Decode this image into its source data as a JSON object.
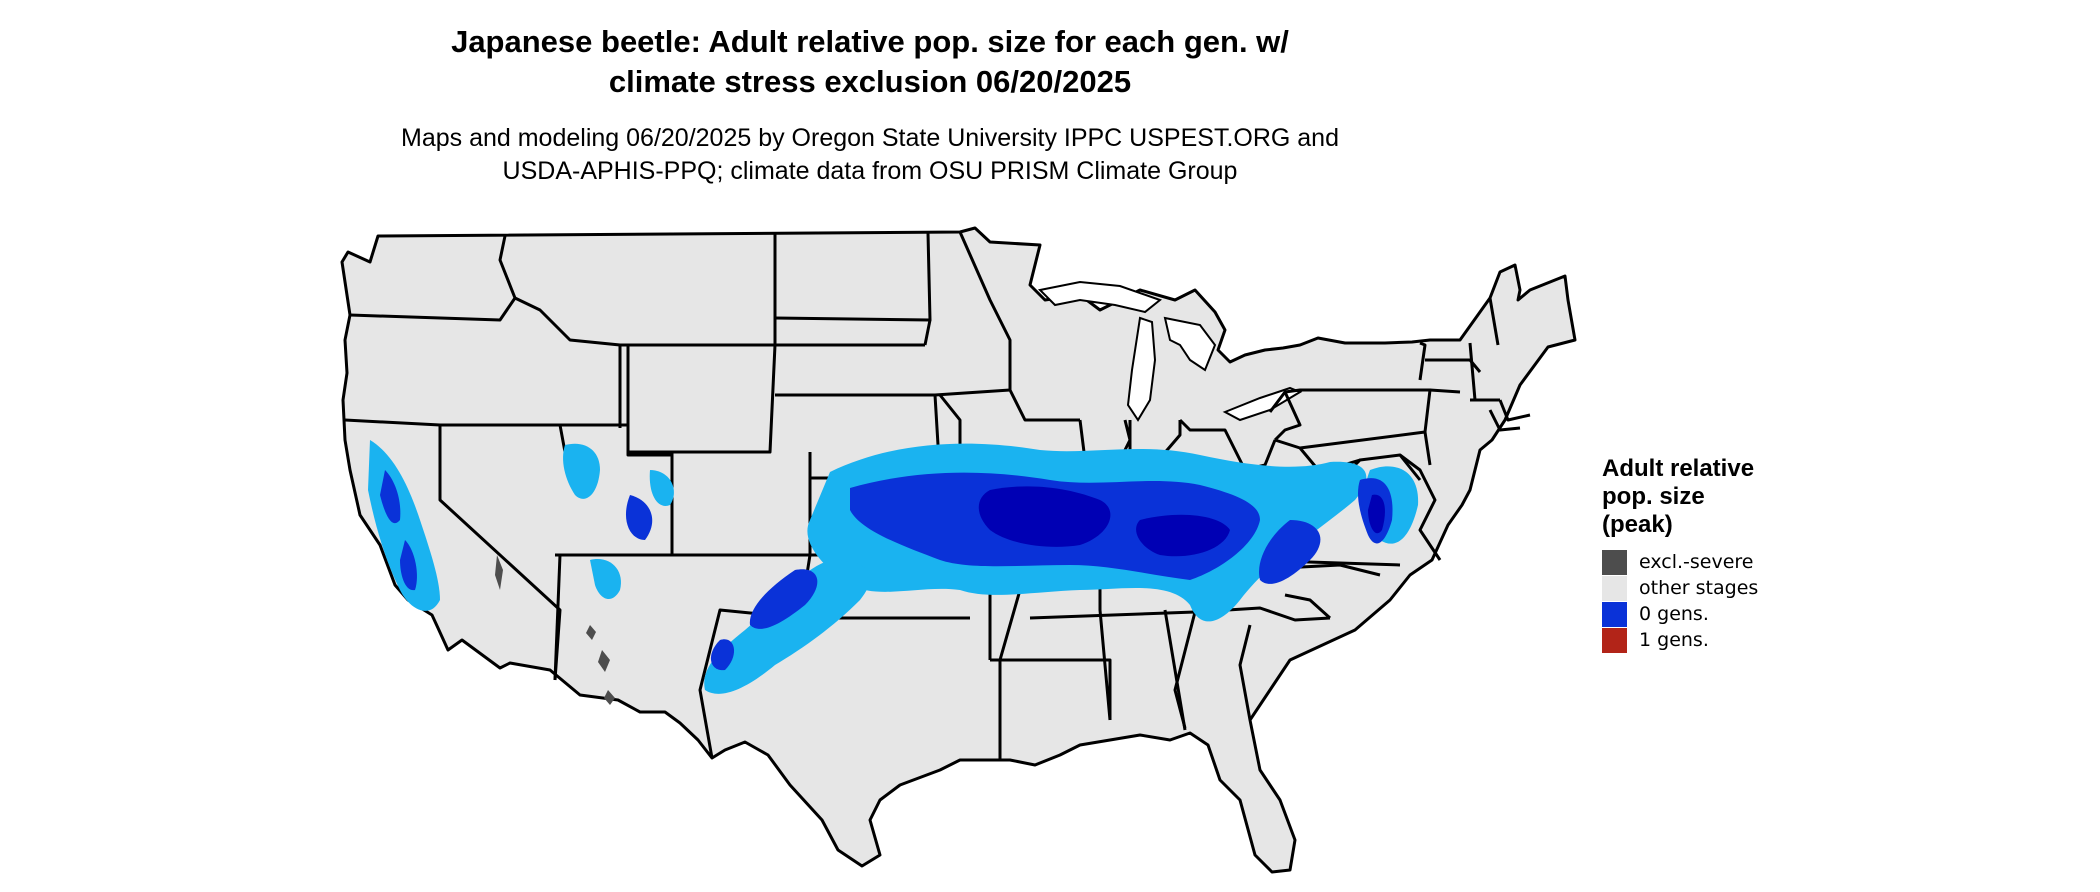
{
  "title": {
    "line1": "Japanese beetle: Adult relative pop. size for each gen. w/",
    "line2": "climate stress exclusion 06/20/2025"
  },
  "subtitle": {
    "line1": "Maps and modeling 06/20/2025 by Oregon State University IPPC USPEST.ORG and",
    "line2": "USDA-APHIS-PPQ; climate data from OSU PRISM Climate Group"
  },
  "legend": {
    "title_lines": [
      "Adult relative",
      "pop. size",
      "(peak)"
    ],
    "items": [
      {
        "label": "excl.-severe",
        "color": "#4d4d4d"
      },
      {
        "label": "other stages",
        "color": "#e6e6e6"
      },
      {
        "label": "0 gens.",
        "color": "#0a32d8"
      },
      {
        "label": "1 gens.",
        "color": "#b22418"
      }
    ]
  },
  "colors": {
    "land": "#e6e6e6",
    "border": "#000000",
    "low": "#1ab3f0",
    "mid": "#0a32d8",
    "high": "#0000b4",
    "excluded": "#4d4d4d"
  }
}
